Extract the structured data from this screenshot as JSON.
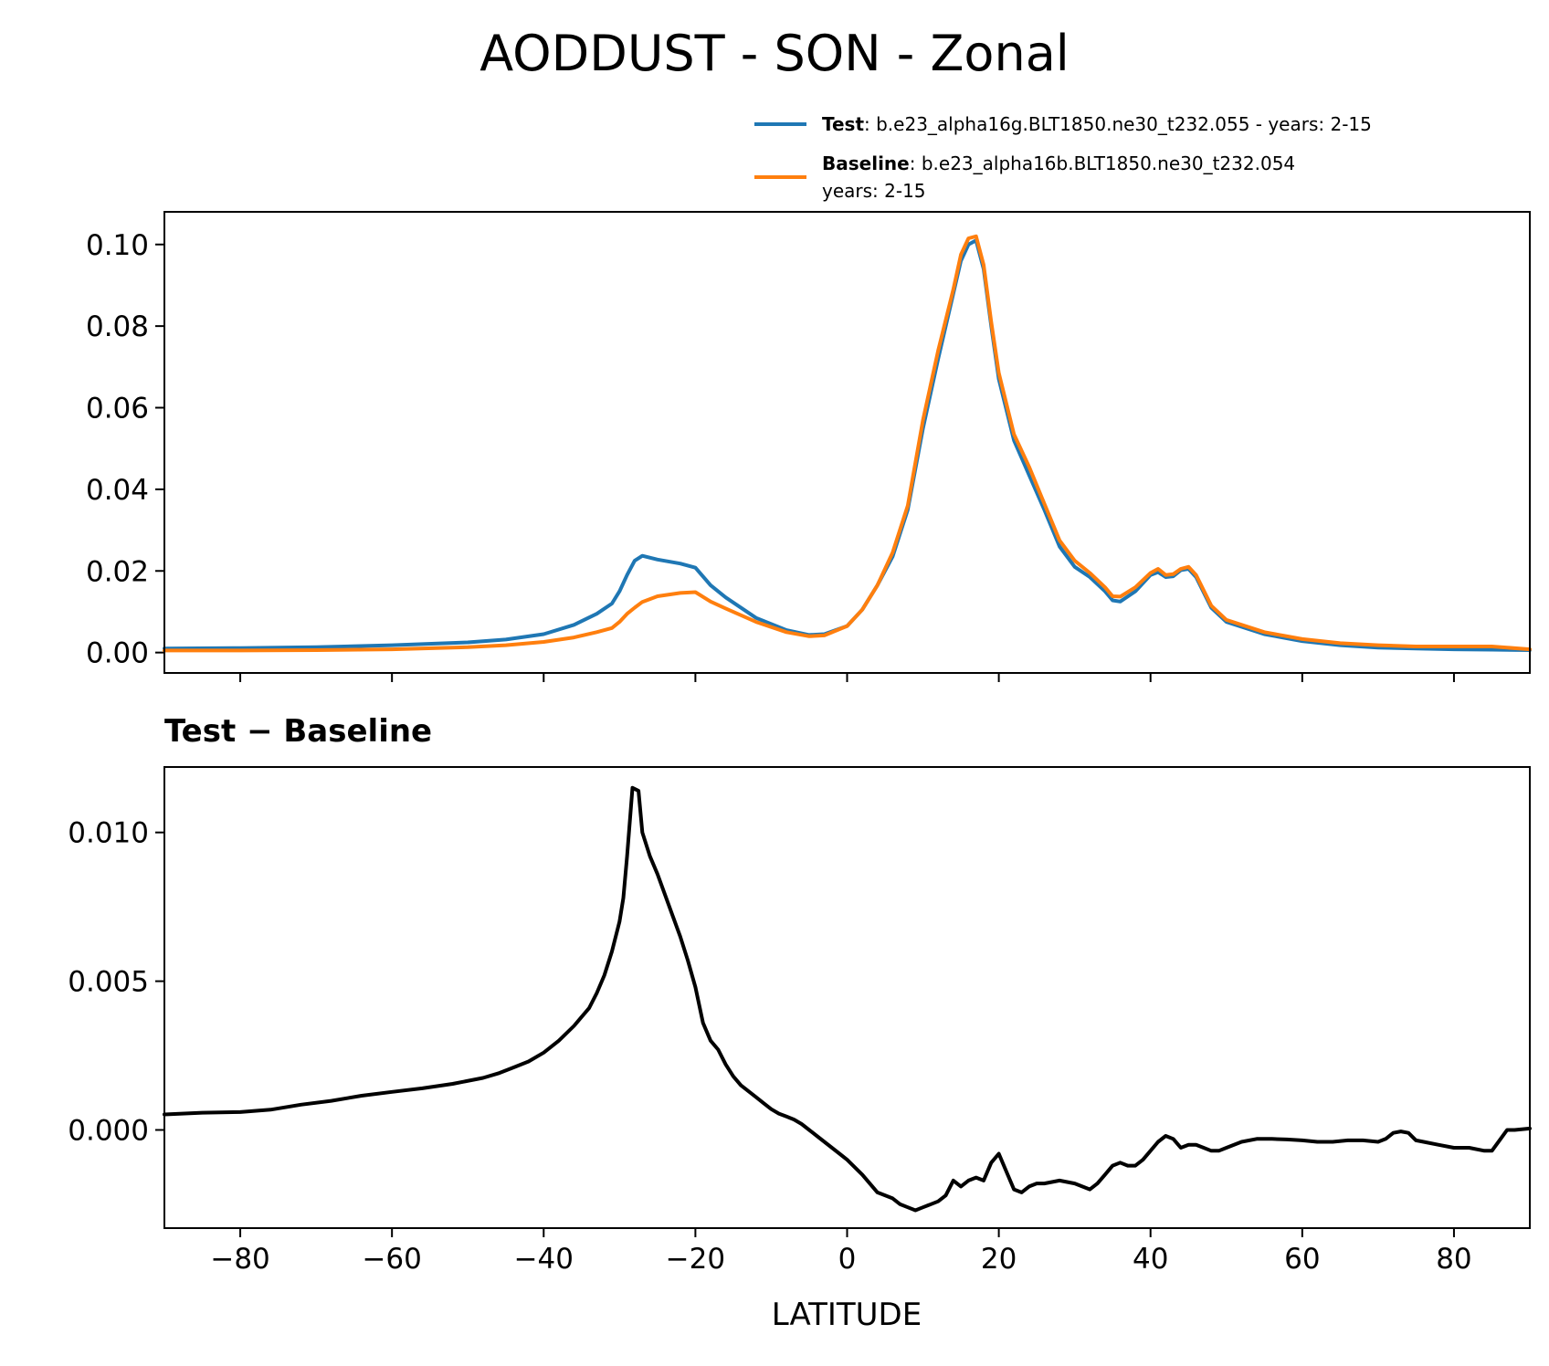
{
  "chart_data": [
    {
      "type": "line",
      "title": "AODDUST - SON - Zonal",
      "xlabel": "",
      "ylabel": "",
      "xlim": [
        -90,
        90
      ],
      "ylim": [
        -0.005,
        0.108
      ],
      "xticks": [
        -80,
        -60,
        -40,
        -20,
        0,
        20,
        40,
        60,
        80
      ],
      "yticks": [
        0.0,
        0.02,
        0.04,
        0.06,
        0.08,
        0.1
      ],
      "ytick_labels": [
        "0.00",
        "0.02",
        "0.04",
        "0.06",
        "0.08",
        "0.10"
      ],
      "legend": {
        "placement": "top-right",
        "entries": [
          {
            "name": "Test",
            "text": ": b.e23_alpha16g.BLT1850.ne30_t232.055 - years: 2-15",
            "text2": ""
          },
          {
            "name": "Baseline",
            "text": ": b.e23_alpha16b.BLT1850.ne30_t232.054",
            "text2": "years: 2-15"
          }
        ]
      },
      "series": [
        {
          "name": "Test",
          "color": "#1f77b4",
          "x": [
            -90,
            -80,
            -70,
            -60,
            -50,
            -45,
            -40,
            -36,
            -33,
            -31,
            -30,
            -29,
            -28,
            -27,
            -25,
            -22,
            -20,
            -18,
            -16,
            -12,
            -8,
            -5,
            -3,
            0,
            2,
            4,
            6,
            8,
            10,
            12,
            14,
            15,
            16,
            17,
            18,
            19,
            20,
            22,
            24,
            26,
            28,
            30,
            32,
            34,
            35,
            36,
            38,
            40,
            41,
            42,
            43,
            44,
            45,
            46,
            48,
            50,
            55,
            60,
            65,
            70,
            75,
            80,
            85,
            90
          ],
          "values": [
            0.001,
            0.0011,
            0.0013,
            0.0018,
            0.0025,
            0.0032,
            0.0045,
            0.0068,
            0.0095,
            0.012,
            0.015,
            0.019,
            0.0225,
            0.0237,
            0.0228,
            0.0218,
            0.0208,
            0.0165,
            0.0135,
            0.0085,
            0.0055,
            0.0043,
            0.0045,
            0.0065,
            0.0105,
            0.0165,
            0.0235,
            0.035,
            0.055,
            0.072,
            0.088,
            0.096,
            0.1,
            0.101,
            0.094,
            0.08,
            0.067,
            0.052,
            0.0435,
            0.035,
            0.026,
            0.021,
            0.0185,
            0.015,
            0.0128,
            0.0125,
            0.015,
            0.019,
            0.0197,
            0.0185,
            0.0187,
            0.0202,
            0.0205,
            0.0185,
            0.011,
            0.0075,
            0.0045,
            0.0028,
            0.0018,
            0.0012,
            0.001,
            0.0008,
            0.0007,
            0.0006
          ]
        },
        {
          "name": "Baseline",
          "color": "#ff7f0e",
          "x": [
            -90,
            -80,
            -70,
            -60,
            -50,
            -45,
            -40,
            -36,
            -33,
            -31,
            -30,
            -29,
            -28,
            -27,
            -25,
            -22,
            -20,
            -18,
            -16,
            -12,
            -8,
            -5,
            -3,
            0,
            2,
            4,
            6,
            8,
            10,
            12,
            14,
            15,
            16,
            17,
            18,
            19,
            20,
            22,
            24,
            26,
            28,
            30,
            32,
            34,
            35,
            36,
            38,
            40,
            41,
            42,
            43,
            44,
            45,
            46,
            48,
            50,
            55,
            60,
            65,
            70,
            75,
            80,
            85,
            90
          ],
          "values": [
            0.0005,
            0.0005,
            0.0006,
            0.0008,
            0.0013,
            0.0018,
            0.0026,
            0.0037,
            0.005,
            0.006,
            0.0075,
            0.0095,
            0.011,
            0.0124,
            0.0138,
            0.0146,
            0.0148,
            0.0125,
            0.0108,
            0.0075,
            0.005,
            0.004,
            0.0042,
            0.0065,
            0.0105,
            0.0165,
            0.0245,
            0.036,
            0.057,
            0.074,
            0.089,
            0.0975,
            0.1015,
            0.102,
            0.095,
            0.081,
            0.0685,
            0.0535,
            0.0455,
            0.0365,
            0.0275,
            0.0225,
            0.0195,
            0.016,
            0.0138,
            0.0137,
            0.016,
            0.0195,
            0.0205,
            0.019,
            0.0192,
            0.0205,
            0.021,
            0.019,
            0.0115,
            0.008,
            0.005,
            0.0033,
            0.0023,
            0.0018,
            0.0015,
            0.0015,
            0.0015,
            0.0008
          ]
        }
      ]
    },
    {
      "type": "line",
      "title": "Test − Baseline",
      "xlabel": "LATITUDE",
      "ylabel": "",
      "xlim": [
        -90,
        90
      ],
      "ylim": [
        -0.0033,
        0.0122
      ],
      "xticks": [
        -80,
        -60,
        -40,
        -20,
        0,
        20,
        40,
        60,
        80
      ],
      "xtick_labels": [
        "−80",
        "−60",
        "−40",
        "−20",
        "0",
        "20",
        "40",
        "60",
        "80"
      ],
      "yticks": [
        0.0,
        0.005,
        0.01
      ],
      "ytick_labels": [
        "0.000",
        "0.005",
        "0.010"
      ],
      "series": [
        {
          "name": "Test − Baseline",
          "color": "#000000",
          "x": [
            -90,
            -85,
            -80,
            -76,
            -72,
            -68,
            -64,
            -60,
            -56,
            -52,
            -48,
            -46,
            -44,
            -42,
            -40,
            -38,
            -36,
            -34,
            -33,
            -32,
            -31,
            -30,
            -29.5,
            -29,
            -28.3,
            -27.5,
            -27,
            -26,
            -25,
            -23,
            -22,
            -21,
            -20,
            -19,
            -18,
            -17,
            -16,
            -15,
            -14,
            -13,
            -12,
            -11,
            -10,
            -9,
            -8,
            -7,
            -6,
            -5,
            -4,
            -3,
            -2,
            -1,
            0,
            2,
            4,
            6,
            7,
            8,
            9,
            10,
            12,
            13,
            14,
            15,
            16,
            17,
            18,
            19,
            20,
            21,
            22,
            23,
            24,
            25,
            26,
            28,
            30,
            31,
            32,
            33,
            34,
            35,
            36,
            37,
            38,
            39,
            40,
            41,
            42,
            43,
            44,
            45,
            46,
            47,
            48,
            49,
            50,
            52,
            54,
            56,
            58,
            60,
            62,
            64,
            66,
            68,
            70,
            71,
            72,
            73,
            74,
            75,
            76,
            78,
            80,
            82,
            84,
            85,
            86,
            87,
            88,
            90
          ],
          "values": [
            0.00052,
            0.00058,
            0.0006,
            0.00068,
            0.00085,
            0.00098,
            0.00115,
            0.00128,
            0.0014,
            0.00155,
            0.00175,
            0.0019,
            0.0021,
            0.0023,
            0.0026,
            0.003,
            0.0035,
            0.0041,
            0.0046,
            0.0052,
            0.006,
            0.007,
            0.0078,
            0.0092,
            0.0115,
            0.0114,
            0.01,
            0.0092,
            0.0086,
            0.0072,
            0.0065,
            0.0057,
            0.0048,
            0.0036,
            0.003,
            0.0027,
            0.0022,
            0.0018,
            0.0015,
            0.0013,
            0.0011,
            0.0009,
            0.0007,
            0.00055,
            0.00045,
            0.00035,
            0.0002,
            0.0,
            -0.0002,
            -0.0004,
            -0.0006,
            -0.0008,
            -0.001,
            -0.0015,
            -0.0021,
            -0.0023,
            -0.0025,
            -0.0026,
            -0.0027,
            -0.0026,
            -0.0024,
            -0.0022,
            -0.0017,
            -0.0019,
            -0.0017,
            -0.0016,
            -0.0017,
            -0.0011,
            -0.0008,
            -0.0014,
            -0.002,
            -0.0021,
            -0.0019,
            -0.0018,
            -0.0018,
            -0.0017,
            -0.0018,
            -0.0019,
            -0.002,
            -0.0018,
            -0.0015,
            -0.0012,
            -0.0011,
            -0.0012,
            -0.0012,
            -0.001,
            -0.0007,
            -0.0004,
            -0.0002,
            -0.0003,
            -0.0006,
            -0.0005,
            -0.0005,
            -0.0006,
            -0.0007,
            -0.0007,
            -0.0006,
            -0.0004,
            -0.0003,
            -0.0003,
            -0.00032,
            -0.00035,
            -0.0004,
            -0.0004,
            -0.00035,
            -0.00035,
            -0.0004,
            -0.0003,
            -0.0001,
            -5e-05,
            -0.0001,
            -0.00035,
            -0.0004,
            -0.0005,
            -0.0006,
            -0.0006,
            -0.0007,
            -0.0007,
            -0.00035,
            0.0,
            0.0,
            5e-05
          ]
        }
      ]
    }
  ]
}
